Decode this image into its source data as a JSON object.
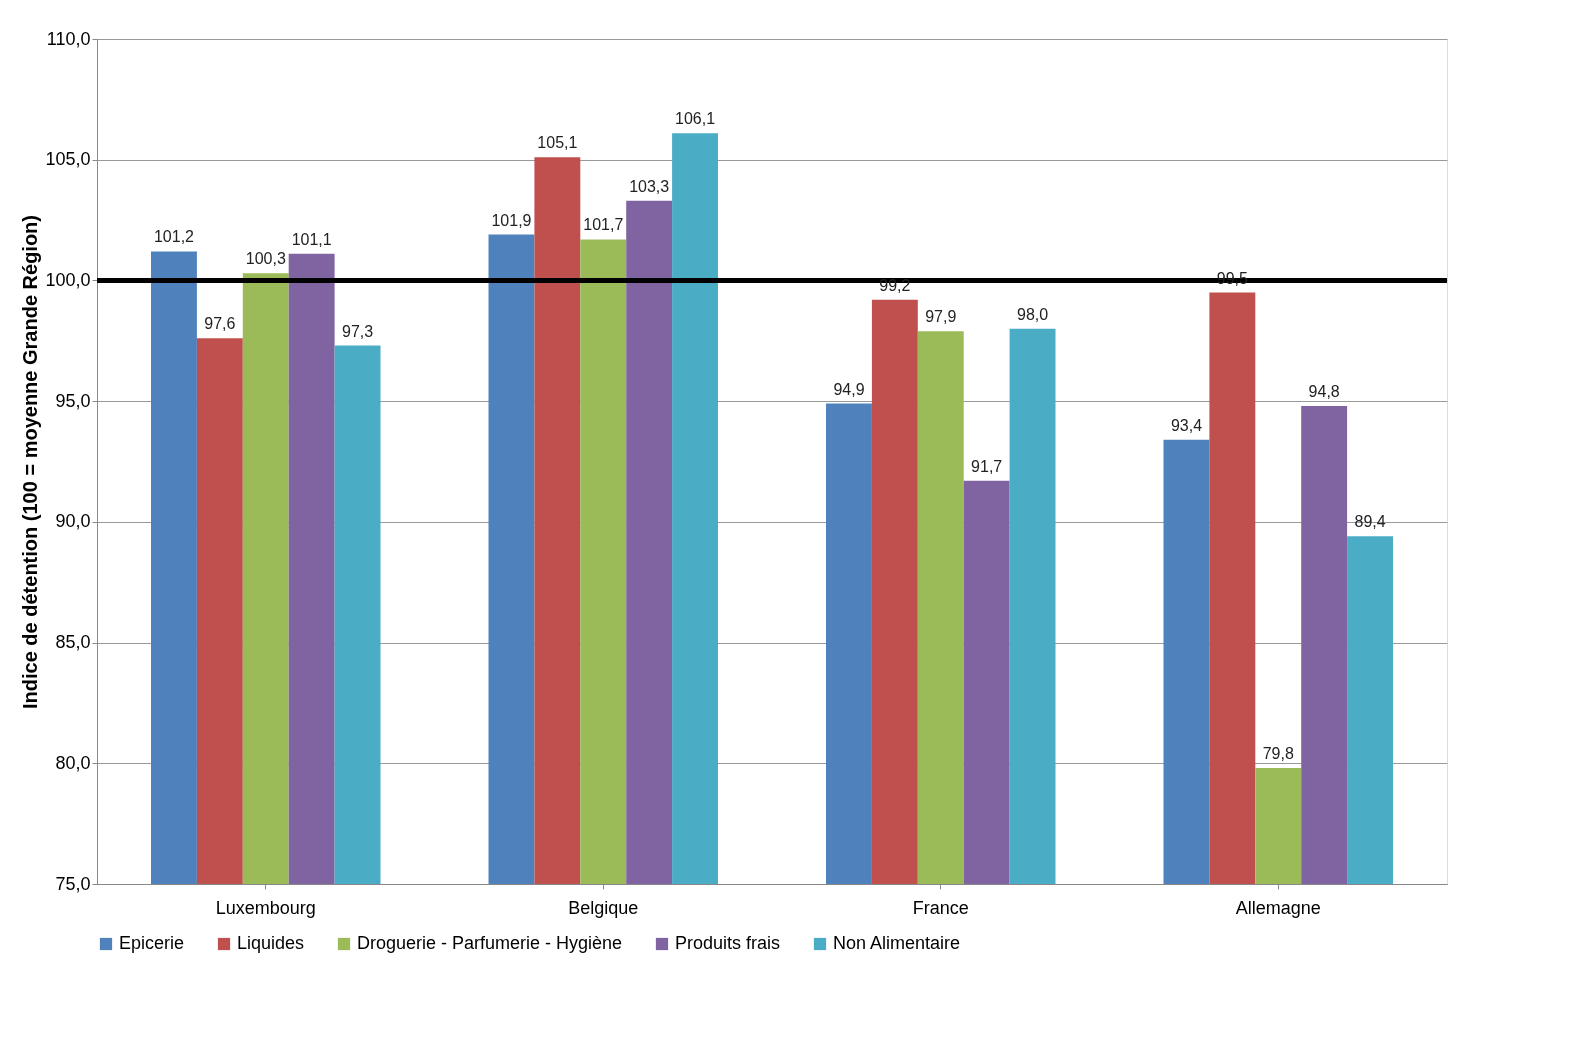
{
  "chart_data": {
    "type": "bar",
    "ylabel": "Indice de détention (100 = moyenne Grande Région)",
    "categories": [
      "Luxembourg",
      "Belgique",
      "France",
      "Allemagne"
    ],
    "series": [
      {
        "name": "Epicerie",
        "color": "#4f81bd",
        "values": [
          101.2,
          101.9,
          94.9,
          93.4
        ],
        "value_labels": [
          "101,2",
          "101,9",
          "94,9",
          "93,4"
        ]
      },
      {
        "name": "Liquides",
        "color": "#c0504d",
        "values": [
          97.6,
          105.1,
          99.2,
          99.5
        ],
        "value_labels": [
          "97,6",
          "105,1",
          "99,2",
          "99,5"
        ]
      },
      {
        "name": "Droguerie - Parfumerie - Hygiène",
        "color": "#9bbb59",
        "values": [
          100.3,
          101.7,
          97.9,
          79.8
        ],
        "value_labels": [
          "100,3",
          "101,7",
          "97,9",
          "79,8"
        ]
      },
      {
        "name": "Produits frais",
        "color": "#8064a2",
        "values": [
          101.1,
          103.3,
          91.7,
          94.8
        ],
        "value_labels": [
          "101,1",
          "103,3",
          "91,7",
          "94,8"
        ]
      },
      {
        "name": "Non Alimentaire",
        "color": "#4bacc6",
        "values": [
          97.3,
          106.1,
          98.0,
          89.4
        ],
        "value_labels": [
          "97,3",
          "106,1",
          "98,0",
          "89,4"
        ]
      }
    ],
    "ylim": [
      75,
      110
    ],
    "yticks": [
      {
        "value": 75,
        "label": "75,0"
      },
      {
        "value": 80,
        "label": "80,0"
      },
      {
        "value": 85,
        "label": "85,0"
      },
      {
        "value": 90,
        "label": "90,0"
      },
      {
        "value": 95,
        "label": "95,0"
      },
      {
        "value": 100,
        "label": "100,0"
      },
      {
        "value": 105,
        "label": "105,0"
      },
      {
        "value": 110,
        "label": "110,0"
      }
    ],
    "ref_lines": [
      {
        "axis": "y",
        "value": 100,
        "color": "#000000"
      }
    ],
    "grid": "y",
    "legend": "bottom"
  }
}
